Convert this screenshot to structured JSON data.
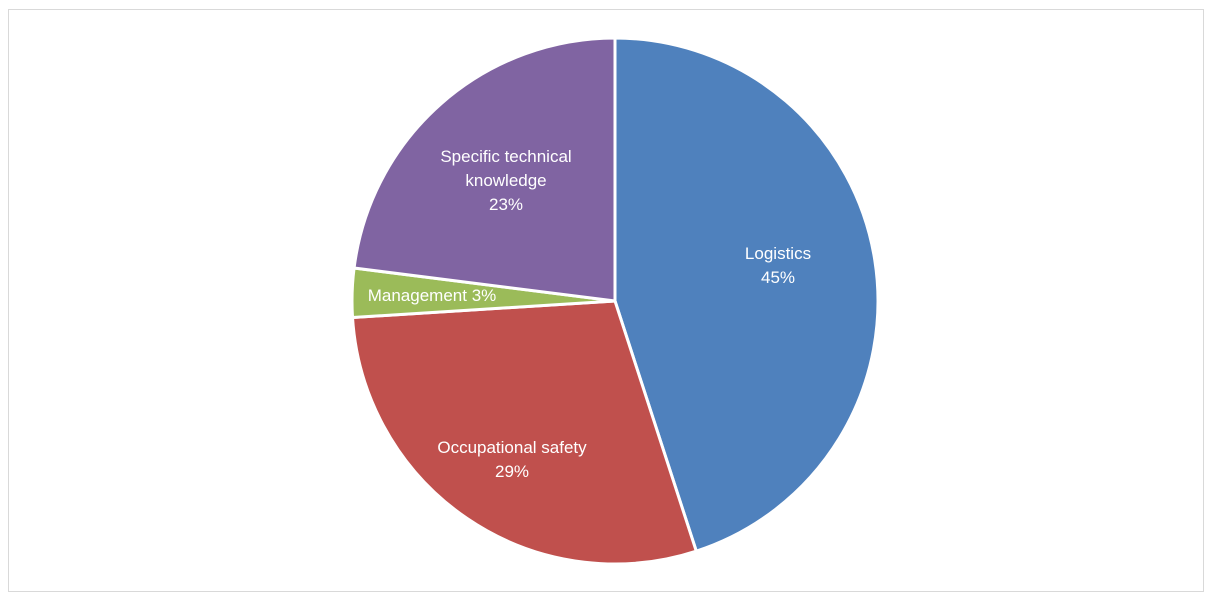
{
  "chart_data": {
    "type": "pie",
    "categories": [
      "Logistics",
      "Occupational safety",
      "Management",
      "Specific technical knowledge"
    ],
    "values": [
      45,
      29,
      3,
      23
    ],
    "value_labels": [
      "45%",
      "29%",
      "3%",
      "23%"
    ],
    "colors": [
      "#4f81bd",
      "#c0504d",
      "#9bbb59",
      "#8064a2"
    ]
  }
}
